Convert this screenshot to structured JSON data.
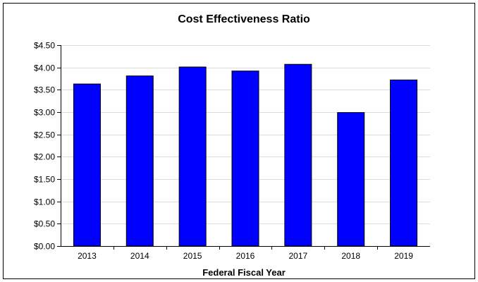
{
  "chart_data": {
    "type": "bar",
    "title": "Cost Effectiveness Ratio",
    "xlabel": "Federal Fiscal Year",
    "ylabel": "",
    "categories": [
      "2013",
      "2014",
      "2015",
      "2016",
      "2017",
      "2018",
      "2019"
    ],
    "values": [
      3.63,
      3.81,
      4.01,
      3.92,
      4.07,
      2.99,
      3.72
    ],
    "ylim": [
      0,
      4.5
    ],
    "yticks": [
      0,
      0.5,
      1,
      1.5,
      2,
      2.5,
      3,
      3.5,
      4,
      4.5
    ],
    "ytick_labels": [
      "$0.00",
      "$0.50",
      "$1.00",
      "$1.50",
      "$2.00",
      "$2.50",
      "$3.00",
      "$3.50",
      "$4.00",
      "$4.50"
    ],
    "grid": true,
    "legend": "none",
    "colors": {
      "bar_fill": "#0000ff",
      "bar_stroke": "#000000",
      "grid": "#dcdcdc",
      "axis": "#000000"
    }
  }
}
